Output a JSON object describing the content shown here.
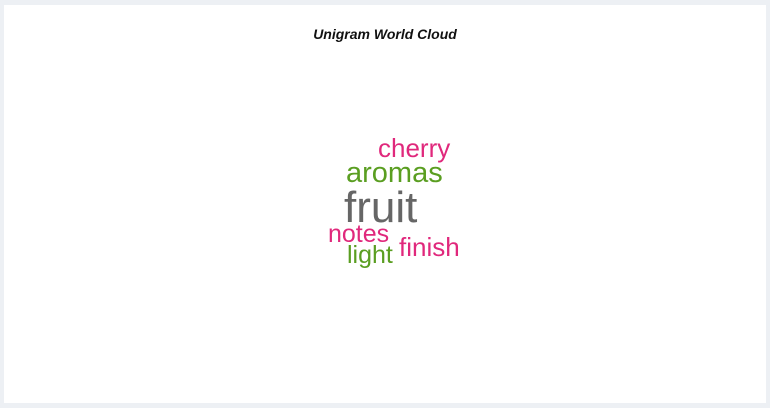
{
  "chart_data": {
    "type": "wordcloud",
    "title": "Unigram World Cloud",
    "words": [
      {
        "text": "fruit",
        "color": "#666666"
      },
      {
        "text": "aromas",
        "color": "#5a9e21"
      },
      {
        "text": "cherry",
        "color": "#e0287c"
      },
      {
        "text": "notes",
        "color": "#e0287c"
      },
      {
        "text": "finish",
        "color": "#e0287c"
      },
      {
        "text": "light",
        "color": "#5a9e21"
      }
    ]
  }
}
